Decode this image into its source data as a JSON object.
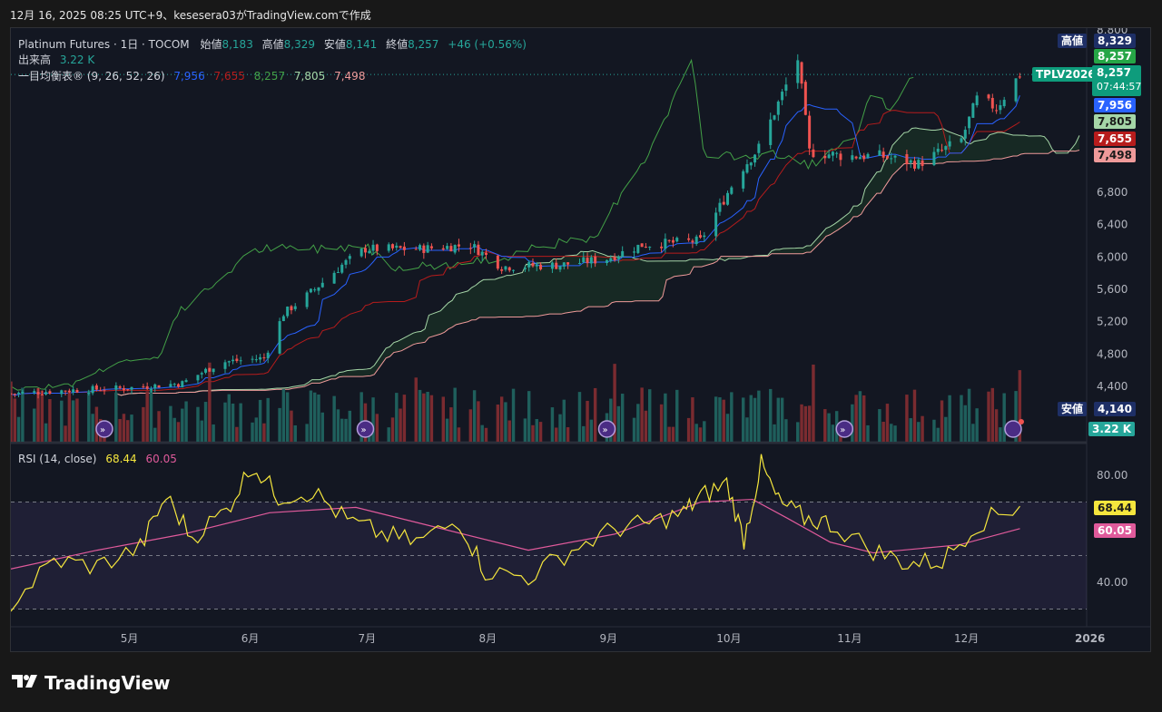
{
  "header": {
    "text": "12月 16, 2025 08:25 UTC+9、kesesera03がTradingView.comで作成"
  },
  "legend": {
    "symbol": "Platinum Futures · 1日 · TOCOM",
    "open_label": "始値",
    "open": "8,183",
    "high_label": "高値",
    "high": "8,329",
    "low_label": "安値",
    "low": "8,141",
    "close_label": "終値",
    "close": "8,257",
    "change": "+46 (+0.56%)",
    "volume_label": "出来高",
    "volume": "3.22 K",
    "ichimoku_label": "一目均衡表® (9, 26, 52, 26)",
    "ichimoku_values": [
      "7,956",
      "7,655",
      "8,257",
      "7,805",
      "7,498"
    ],
    "rsi_label": "RSI (14, close)",
    "rsi_value": "68.44",
    "rsi_ma": "60.05"
  },
  "colors": {
    "up": "#26a69a",
    "down": "#ef5350",
    "tenkan": "#2962ff",
    "kijun": "#b71c1c",
    "chikou": "#43a047",
    "spanA": "#a5d6a7",
    "spanB": "#ef9a9a",
    "rsi": "#f5e63d",
    "rsi_ma": "#e05a9b",
    "vol_up": "#1f5f5c",
    "vol_down": "#7a2b30"
  },
  "price_axis": {
    "ticks": [
      "6,800",
      "6,400",
      "6,000",
      "5,600",
      "5,200",
      "4,800",
      "4,400"
    ],
    "top_cut": "8,800"
  },
  "rsi_axis": {
    "ticks": [
      "80.00",
      "40.00"
    ]
  },
  "time_axis": {
    "ticks": [
      "5月",
      "6月",
      "7月",
      "8月",
      "9月",
      "10月",
      "11月",
      "12月",
      "2026"
    ]
  },
  "price_tags": {
    "high_label": "高値",
    "high": "8,329",
    "close1": "8,257",
    "symbol_tag": "TPLV2026",
    "close2": "8,257",
    "countdown": "07:44:57",
    "tenkan": "7,956",
    "spanA": "7,805",
    "kijun": "7,655",
    "spanB": "7,498",
    "low_label": "安値",
    "low": "4,140",
    "volume": "3.22 K",
    "rsi": "68.44",
    "rsi_ma": "60.05"
  },
  "brand": "TradingView",
  "chart_data": [
    {
      "type": "candlestick",
      "title": "Platinum Futures · 1日 · TOCOM",
      "ylim": [
        4200,
        8800
      ],
      "x_range": [
        "2025-04",
        "2026-01"
      ],
      "close_path": [
        {
          "x": "2025-04-01",
          "close": 4310
        },
        {
          "x": "2025-04-15",
          "close": 4350
        },
        {
          "x": "2025-05-01",
          "close": 4380
        },
        {
          "x": "2025-05-15",
          "close": 4440
        },
        {
          "x": "2025-05-25",
          "close": 4700
        },
        {
          "x": "2025-06-05",
          "close": 4750
        },
        {
          "x": "2025-06-10",
          "close": 5300
        },
        {
          "x": "2025-06-18",
          "close": 5600
        },
        {
          "x": "2025-06-25",
          "close": 5900
        },
        {
          "x": "2025-07-01",
          "close": 6100
        },
        {
          "x": "2025-07-15",
          "close": 6100
        },
        {
          "x": "2025-07-28",
          "close": 6150
        },
        {
          "x": "2025-08-05",
          "close": 5880
        },
        {
          "x": "2025-08-20",
          "close": 5900
        },
        {
          "x": "2025-09-01",
          "close": 5980
        },
        {
          "x": "2025-09-10",
          "close": 6150
        },
        {
          "x": "2025-09-25",
          "close": 6200
        },
        {
          "x": "2025-10-05",
          "close": 7050
        },
        {
          "x": "2025-10-10",
          "close": 7350
        },
        {
          "x": "2025-10-15",
          "close": 7900
        },
        {
          "x": "2025-10-20",
          "close": 8450
        },
        {
          "x": "2025-10-23",
          "close": 7300
        },
        {
          "x": "2025-11-01",
          "close": 7250
        },
        {
          "x": "2025-11-10",
          "close": 7250
        },
        {
          "x": "2025-11-20",
          "close": 7150
        },
        {
          "x": "2025-12-01",
          "close": 7450
        },
        {
          "x": "2025-12-05",
          "close": 7950
        },
        {
          "x": "2025-12-10",
          "close": 7850
        },
        {
          "x": "2025-12-16",
          "close": 8257
        }
      ],
      "last": {
        "open": 8183,
        "high": 8329,
        "low": 8141,
        "close": 8257,
        "change": 46,
        "change_pct": 0.56
      },
      "ichimoku": {
        "tenkan": 7956,
        "kijun": 7655,
        "chikou": 8257,
        "span_a": 7805,
        "span_b": 7498
      },
      "volume_last": "3.22 K"
    },
    {
      "type": "line",
      "title": "RSI (14, close)",
      "ylim": [
        30,
        90
      ],
      "bands": [
        70,
        50,
        30
      ],
      "series": [
        {
          "name": "RSI",
          "last": 68.44,
          "points": [
            [
              0,
              32
            ],
            [
              0.05,
              48
            ],
            [
              0.1,
              46
            ],
            [
              0.15,
              53
            ],
            [
              0.18,
              72
            ],
            [
              0.21,
              57
            ],
            [
              0.25,
              67
            ],
            [
              0.28,
              84
            ],
            [
              0.31,
              72
            ],
            [
              0.35,
              74
            ],
            [
              0.39,
              63
            ],
            [
              0.43,
              58
            ],
            [
              0.47,
              55
            ],
            [
              0.52,
              63
            ],
            [
              0.55,
              44
            ],
            [
              0.6,
              42
            ],
            [
              0.65,
              52
            ],
            [
              0.7,
              60
            ],
            [
              0.74,
              62
            ],
            [
              0.78,
              66
            ],
            [
              0.8,
              72
            ],
            [
              0.83,
              77
            ],
            [
              0.85,
              56
            ],
            [
              0.87,
              84
            ],
            [
              0.89,
              70
            ],
            [
              0.92,
              64
            ],
            [
              0.95,
              62
            ],
            [
              1.0,
              52
            ],
            [
              1.04,
              47
            ],
            [
              1.08,
              48
            ],
            [
              1.12,
              62
            ],
            [
              1.17,
              68.44
            ]
          ]
        },
        {
          "name": "RSI-based MA",
          "last": 60.05,
          "points": [
            [
              0,
              45
            ],
            [
              0.1,
              52
            ],
            [
              0.2,
              58
            ],
            [
              0.3,
              66
            ],
            [
              0.4,
              68
            ],
            [
              0.5,
              60
            ],
            [
              0.6,
              52
            ],
            [
              0.7,
              58
            ],
            [
              0.8,
              70
            ],
            [
              0.86,
              71
            ],
            [
              0.9,
              64
            ],
            [
              0.95,
              55
            ],
            [
              1.0,
              51
            ],
            [
              1.1,
              54
            ],
            [
              1.17,
              60.05
            ]
          ]
        }
      ]
    }
  ]
}
